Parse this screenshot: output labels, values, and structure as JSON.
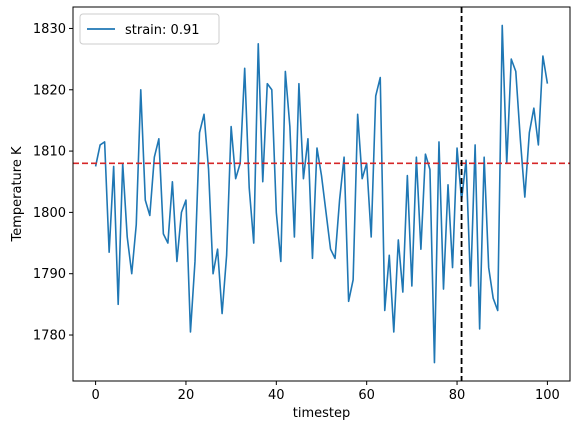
{
  "chart_data": {
    "type": "line",
    "xlabel": "timestep",
    "ylabel": "Temperature K",
    "xlim": [
      -5,
      105
    ],
    "ylim": [
      1772.5,
      1833.5
    ],
    "xticks": [
      0,
      20,
      40,
      60,
      80,
      100
    ],
    "yticks": [
      1780,
      1790,
      1800,
      1810,
      1820,
      1830
    ],
    "grid": false,
    "legend_position": "top-left",
    "series": [
      {
        "name": "strain: 0.91",
        "color": "#1f77b4",
        "x": [
          0,
          1,
          2,
          3,
          4,
          5,
          6,
          7,
          8,
          9,
          10,
          11,
          12,
          13,
          14,
          15,
          16,
          17,
          18,
          19,
          20,
          21,
          22,
          23,
          24,
          25,
          26,
          27,
          28,
          29,
          30,
          31,
          32,
          33,
          34,
          35,
          36,
          37,
          38,
          39,
          40,
          41,
          42,
          43,
          44,
          45,
          46,
          47,
          48,
          49,
          50,
          51,
          52,
          53,
          54,
          55,
          56,
          57,
          58,
          59,
          60,
          61,
          62,
          63,
          64,
          65,
          66,
          67,
          68,
          69,
          70,
          71,
          72,
          73,
          74,
          75,
          76,
          77,
          78,
          79,
          80,
          81,
          82,
          83,
          84,
          85,
          86,
          87,
          88,
          89,
          90,
          91,
          92,
          93,
          94,
          95,
          96,
          97,
          98,
          99,
          100
        ],
        "y": [
          1807.5,
          1811,
          1811.5,
          1793.5,
          1807.5,
          1785,
          1808,
          1796,
          1790,
          1798,
          1820,
          1802,
          1799.5,
          1809,
          1812,
          1796.5,
          1795,
          1805,
          1792,
          1800,
          1802,
          1780.5,
          1792,
          1813,
          1816,
          1807,
          1790,
          1794,
          1783.5,
          1793,
          1814,
          1805.5,
          1808,
          1823.5,
          1804,
          1795,
          1827.5,
          1805,
          1821,
          1820,
          1800,
          1792,
          1823,
          1814,
          1796,
          1821,
          1805.5,
          1812,
          1792.5,
          1810.5,
          1806,
          1800,
          1794,
          1792.5,
          1802,
          1809,
          1785.5,
          1789,
          1816,
          1805.5,
          1808,
          1796,
          1819,
          1822,
          1784,
          1793,
          1780.5,
          1795.5,
          1787,
          1806,
          1788,
          1809,
          1794,
          1809.5,
          1807,
          1775.5,
          1811.5,
          1787.5,
          1804.5,
          1791,
          1810.5,
          1802,
          1808.5,
          1788,
          1811,
          1781,
          1809,
          1791,
          1786,
          1784,
          1830.5,
          1808,
          1825,
          1823,
          1812,
          1802.5,
          1813,
          1817,
          1811,
          1825.5,
          1821
        ]
      }
    ],
    "reference_lines": [
      {
        "orientation": "horizontal",
        "value": 1808,
        "color": "#d62728",
        "style": "dashed"
      },
      {
        "orientation": "vertical",
        "value": 81,
        "color": "#000000",
        "style": "dashed"
      }
    ]
  }
}
